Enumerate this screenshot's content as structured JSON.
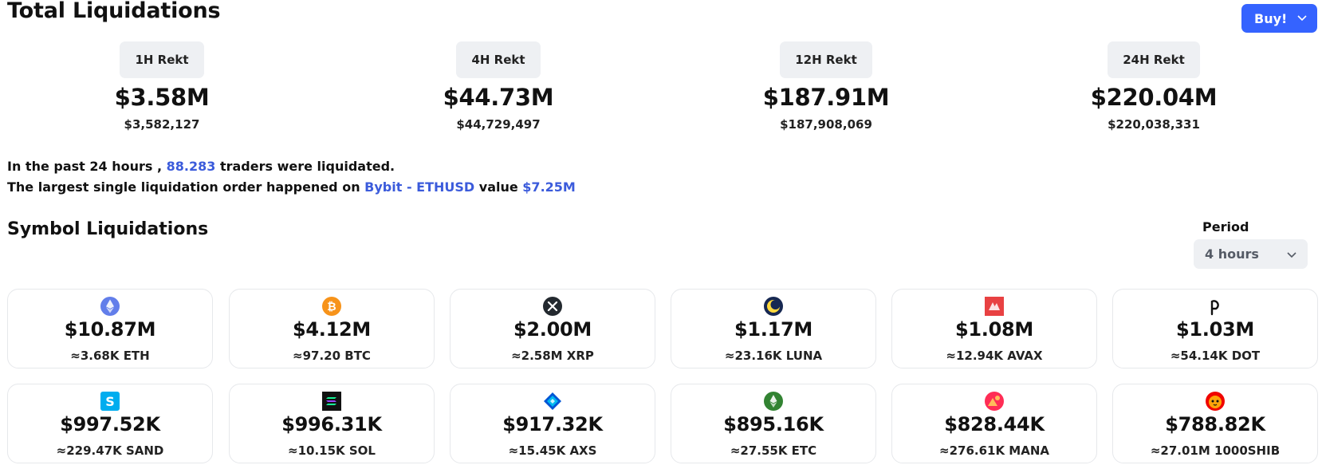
{
  "header": {
    "title": "Total Liquidations",
    "buy_label": "Buy!"
  },
  "rekt": [
    {
      "label": "1H Rekt",
      "big": "$3.58M",
      "exact": "$3,582,127"
    },
    {
      "label": "4H Rekt",
      "big": "$44.73M",
      "exact": "$44,729,497"
    },
    {
      "label": "12H Rekt",
      "big": "$187.91M",
      "exact": "$187,908,069"
    },
    {
      "label": "24H Rekt",
      "big": "$220.04M",
      "exact": "$220,038,331"
    }
  ],
  "summary": {
    "line1_prefix": "In the past 24 hours ,",
    "traders": "88.283",
    "line1_suffix": "traders were liquidated.",
    "line2_prefix": "The largest single liquidation order happened on",
    "order_source": "Bybit - ETHUSD",
    "line2_mid": "value",
    "order_value": "$7.25M"
  },
  "symbols": {
    "title": "Symbol Liquidations",
    "period_label": "Period",
    "period_value": "4 hours",
    "cards": [
      {
        "icon": "eth-icon",
        "amount": "$10.87M",
        "sub": "≈3.68K ETH"
      },
      {
        "icon": "btc-icon",
        "amount": "$4.12M",
        "sub": "≈97.20 BTC"
      },
      {
        "icon": "xrp-icon",
        "amount": "$2.00M",
        "sub": "≈2.58M XRP"
      },
      {
        "icon": "luna-icon",
        "amount": "$1.17M",
        "sub": "≈23.16K LUNA"
      },
      {
        "icon": "avax-icon",
        "amount": "$1.08M",
        "sub": "≈12.94K AVAX"
      },
      {
        "icon": "dot-icon",
        "amount": "$1.03M",
        "sub": "≈54.14K DOT"
      },
      {
        "icon": "sand-icon",
        "amount": "$997.52K",
        "sub": "≈229.47K SAND"
      },
      {
        "icon": "sol-icon",
        "amount": "$996.31K",
        "sub": "≈10.15K SOL"
      },
      {
        "icon": "axs-icon",
        "amount": "$917.32K",
        "sub": "≈15.45K AXS"
      },
      {
        "icon": "etc-icon",
        "amount": "$895.16K",
        "sub": "≈27.55K ETC"
      },
      {
        "icon": "mana-icon",
        "amount": "$828.44K",
        "sub": "≈276.61K MANA"
      },
      {
        "icon": "shib-icon",
        "amount": "$788.82K",
        "sub": "≈27.01M 1000SHIB"
      }
    ]
  },
  "colors": {
    "accent": "#3563ff",
    "highlight": "#3b5bdb",
    "badge_bg": "#eef0f3",
    "card_border": "#e6e8eb"
  }
}
